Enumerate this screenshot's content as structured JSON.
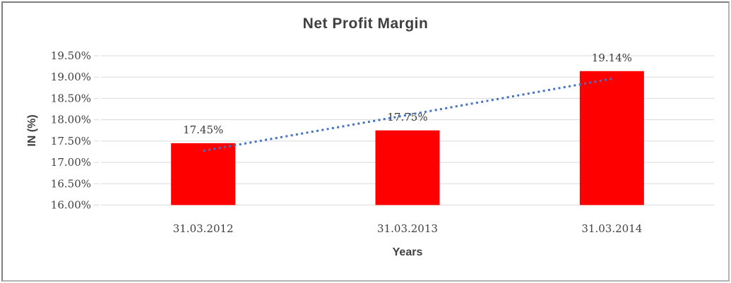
{
  "chart_data": {
    "type": "bar",
    "title": "Net Profit Margin",
    "categories": [
      "31.03.2012",
      "31.03.2013",
      "31.03.2014"
    ],
    "values": [
      17.45,
      17.75,
      19.14
    ],
    "data_labels": [
      "17.45%",
      "17.75%",
      "19.14%"
    ],
    "xlabel": "Years",
    "ylabel": "IN (%)",
    "ylim": [
      16.0,
      19.5
    ],
    "ytick_step": 0.5,
    "ytick_labels": [
      "19.50%",
      "19.00%",
      "18.50%",
      "18.00%",
      "17.50%",
      "17.00%",
      "16.50%",
      "16.00%"
    ],
    "grid": true,
    "legend": "none",
    "bar_color": "#ff0000",
    "grid_color": "#d9d9d9",
    "text_color": "#404040",
    "trendline": {
      "type": "linear",
      "style": "dotted",
      "color": "#4472c4",
      "values": [
        17.27,
        18.11,
        18.96
      ]
    }
  }
}
